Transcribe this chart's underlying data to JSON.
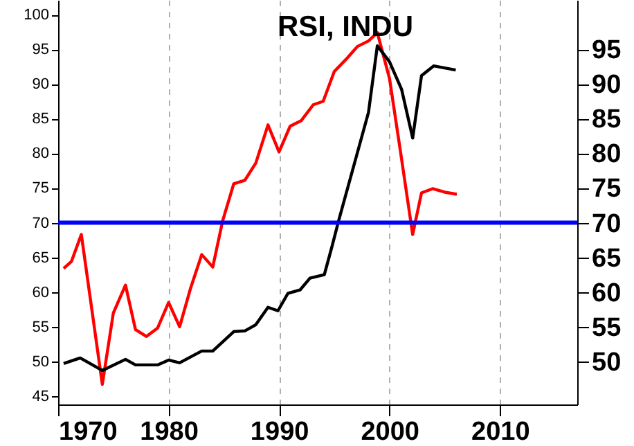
{
  "chart_data": {
    "type": "line",
    "title": "RSI, INDU",
    "xlim": [
      1970,
      2017
    ],
    "xticks": [
      1970,
      1980,
      1990,
      2000,
      2010
    ],
    "ylim": [
      43.8,
      102.1
    ],
    "yticks": [
      45,
      50,
      55,
      60,
      65,
      70,
      75,
      80,
      85,
      90,
      95,
      100
    ],
    "y2lim": [
      43.8,
      102.1
    ],
    "y2ticks": [
      50,
      55,
      60,
      65,
      70,
      75,
      80,
      85,
      90,
      95
    ],
    "grid": "x",
    "line_style": "solid",
    "marker": "none",
    "ref_lines": [
      {
        "axis": "y",
        "value": 70,
        "color": "#0000ff"
      }
    ],
    "series": [
      {
        "color": "#ff0000",
        "x": [
          1970.5,
          1971.2,
          1972.1,
          1974.0,
          1975.0,
          1976.1,
          1977.0,
          1978.0,
          1979.0,
          1980.0,
          1981.0,
          1982.0,
          1983.0,
          1984.0,
          1984.9,
          1985.9,
          1986.9,
          1987.9,
          1989.0,
          1990.0,
          1991.0,
          1992.0,
          1993.1,
          1994.0,
          1995.0,
          1996.1,
          1997.1,
          1998.1,
          1998.9,
          2000.0,
          2001.0,
          2002.1,
          2002.9,
          2003.9,
          2005.0,
          2006.1
        ],
        "values": [
          63.4,
          64.4,
          68.3,
          46.7,
          57.0,
          61.0,
          54.6,
          53.6,
          54.8,
          58.5,
          55.0,
          60.6,
          65.4,
          63.6,
          70.3,
          75.6,
          76.1,
          78.6,
          84.1,
          80.2,
          83.9,
          84.7,
          87.0,
          87.5,
          91.8,
          93.6,
          95.4,
          96.2,
          97.4,
          90.8,
          80.2,
          68.3,
          74.3,
          74.9,
          74.4,
          74.1
        ]
      },
      {
        "color": "#000000",
        "x": [
          1970.5,
          1972.0,
          1974.0,
          1976.1,
          1977.0,
          1979.0,
          1980.0,
          1981.0,
          1983.0,
          1984.0,
          1985.9,
          1986.9,
          1987.9,
          1989.0,
          1989.9,
          1990.8,
          1991.9,
          1992.8,
          1994.1,
          1994.8,
          1995.4,
          1998.1,
          1998.9,
          2000.0,
          2001.1,
          2002.1,
          2002.9,
          2004.0,
          2006.0
        ],
        "values": [
          49.7,
          50.5,
          48.7,
          50.3,
          49.5,
          49.5,
          50.2,
          49.8,
          51.5,
          51.5,
          54.3,
          54.4,
          55.3,
          57.8,
          57.3,
          59.8,
          60.3,
          62.0,
          62.5,
          66.6,
          70.3,
          85.9,
          95.5,
          93.2,
          89.2,
          82.2,
          91.2,
          92.6,
          92.0
        ]
      }
    ]
  }
}
